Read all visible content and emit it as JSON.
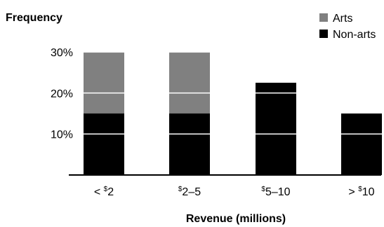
{
  "chart_data": {
    "type": "bar",
    "stacked": true,
    "ylabel": "Frequency",
    "xlabel": "Revenue (millions)",
    "categories": [
      "< $2",
      "$2–5",
      "$5–10",
      "> $10"
    ],
    "category_parts": [
      {
        "prefix": "< ",
        "sup": "$",
        "rest": "2"
      },
      {
        "prefix": "",
        "sup": "$",
        "rest": "2–5"
      },
      {
        "prefix": "",
        "sup": "$",
        "rest": "5–10"
      },
      {
        "prefix": "> ",
        "sup": "$",
        "rest": "10"
      }
    ],
    "series": [
      {
        "name": "Non-arts",
        "values": [
          15,
          15,
          22.5,
          15
        ],
        "color": "#000000"
      },
      {
        "name": "Arts",
        "values": [
          15,
          15,
          0,
          0
        ],
        "color": "#808080"
      }
    ],
    "ylim": [
      0,
      30
    ],
    "yticks": [
      10,
      20,
      30
    ],
    "ytick_labels": [
      "10%",
      "20%",
      "30%"
    ],
    "gridlines": "white lines across bars",
    "legend_position": "top-right"
  }
}
